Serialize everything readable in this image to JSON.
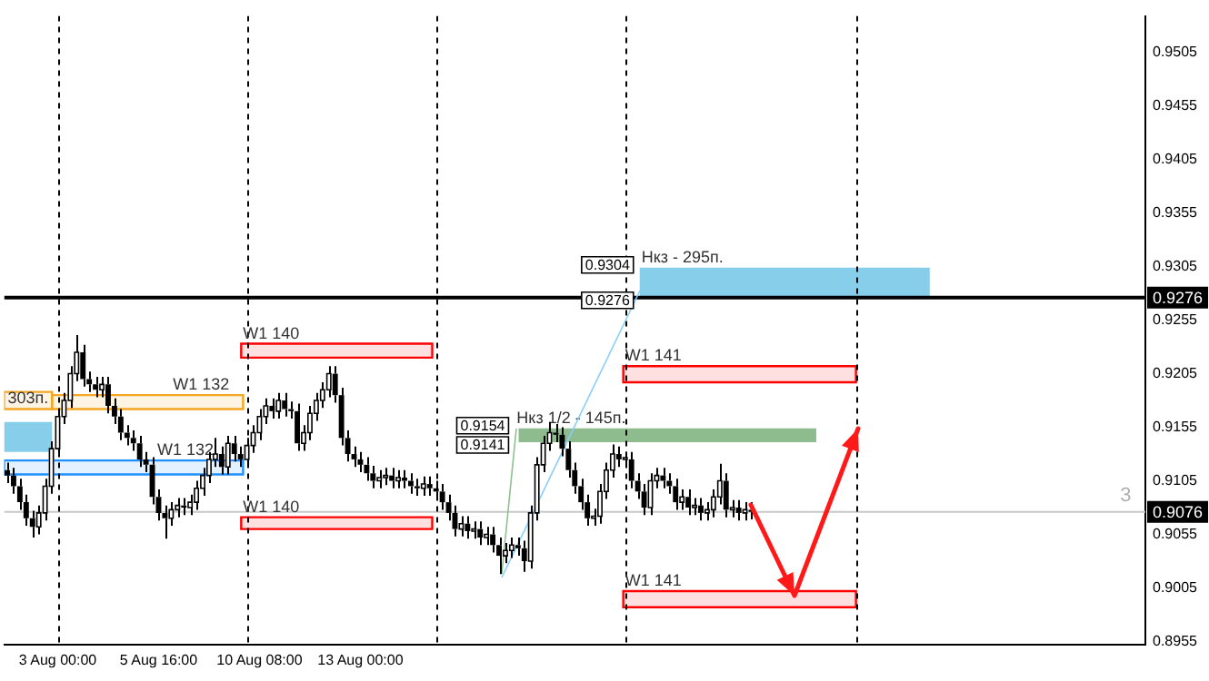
{
  "chart_data": {
    "type": "candlestick",
    "categories": [
      null,
      null,
      null,
      null,
      null,
      null,
      null,
      null,
      "3 Aug 00:00",
      null,
      null,
      null,
      null,
      null,
      null,
      null,
      null,
      null,
      null,
      null,
      null,
      null,
      null,
      null,
      "5 Aug 16:00",
      null,
      null,
      null,
      null,
      null,
      null,
      null,
      null,
      null,
      null,
      null,
      null,
      null,
      null,
      null,
      "10 Aug 08:00",
      null,
      null,
      null,
      null,
      null,
      null,
      null,
      null,
      null,
      null,
      null,
      null,
      null,
      null,
      null,
      "13 Aug 00:00",
      null,
      null,
      null,
      null,
      null,
      null,
      null,
      null,
      null,
      null,
      null,
      null,
      null,
      null,
      null,
      null,
      null,
      null,
      null,
      null,
      null,
      null,
      null,
      null,
      null,
      null,
      null,
      null,
      null,
      null,
      null,
      null,
      null,
      null,
      null,
      null,
      null,
      null,
      null,
      null,
      null,
      null,
      null,
      null,
      null,
      null,
      null,
      null,
      null,
      null,
      null,
      null,
      null,
      null,
      null,
      null,
      null,
      null,
      null,
      null,
      null,
      null,
      null,
      null,
      null,
      null,
      null,
      null,
      null,
      null,
      null,
      null,
      null,
      null,
      null,
      null,
      null,
      null,
      null,
      null,
      null,
      null,
      null,
      null,
      null,
      null,
      null,
      null,
      null,
      null,
      null,
      null,
      null,
      null,
      null,
      null,
      null,
      null,
      null,
      null,
      null,
      null,
      null,
      null,
      null,
      null,
      null,
      null,
      null,
      null,
      null,
      null,
      null,
      null,
      null,
      null,
      null,
      null,
      null,
      null,
      null,
      null,
      null,
      null
    ],
    "ohlc": [
      [
        0.9115,
        0.9122,
        0.9103,
        0.911
      ],
      [
        0.911,
        0.9117,
        0.9093,
        0.91
      ],
      [
        0.91,
        0.9107,
        0.9078,
        0.9085
      ],
      [
        0.9085,
        0.9092,
        0.9063,
        0.907
      ],
      [
        0.907,
        0.9077,
        0.9052,
        0.9062
      ],
      [
        0.9062,
        0.9082,
        0.9055,
        0.9075
      ],
      [
        0.9075,
        0.9107,
        0.9068,
        0.91
      ],
      [
        0.91,
        0.9142,
        0.9093,
        0.9135
      ],
      [
        0.9135,
        0.9172,
        0.9128,
        0.9165
      ],
      [
        0.9165,
        0.9187,
        0.9158,
        0.918
      ],
      [
        0.918,
        0.9212,
        0.9173,
        0.9205
      ],
      [
        0.9205,
        0.9241,
        0.9198,
        0.9225
      ],
      [
        0.9225,
        0.9232,
        0.9193,
        0.92
      ],
      [
        0.92,
        0.9207,
        0.9188,
        0.9195
      ],
      [
        0.9195,
        0.9202,
        0.9183,
        0.919
      ],
      [
        0.919,
        0.9202,
        0.9183,
        0.9195
      ],
      [
        0.9195,
        0.9202,
        0.9168,
        0.9175
      ],
      [
        0.9175,
        0.9182,
        0.9158,
        0.9165
      ],
      [
        0.9165,
        0.9172,
        0.9143,
        0.915
      ],
      [
        0.915,
        0.9157,
        0.9138,
        0.9145
      ],
      [
        0.9145,
        0.9152,
        0.9133,
        0.914
      ],
      [
        0.914,
        0.9147,
        0.9118,
        0.9125
      ],
      [
        0.9125,
        0.9132,
        0.9113,
        0.912
      ],
      [
        0.912,
        0.9127,
        0.9083,
        0.909
      ],
      [
        0.909,
        0.9097,
        0.9068,
        0.9075
      ],
      [
        0.9075,
        0.9082,
        0.9051,
        0.907
      ],
      [
        0.907,
        0.9085,
        0.9063,
        0.9078
      ],
      [
        0.9078,
        0.9089,
        0.9071,
        0.9082
      ],
      [
        0.9082,
        0.9089,
        0.9073,
        0.908
      ],
      [
        0.908,
        0.9092,
        0.9073,
        0.9085
      ],
      [
        0.9085,
        0.9105,
        0.9078,
        0.9098
      ],
      [
        0.9098,
        0.9117,
        0.9091,
        0.911
      ],
      [
        0.911,
        0.9132,
        0.9103,
        0.9125
      ],
      [
        0.9125,
        0.9145,
        0.9118,
        0.913
      ],
      [
        0.913,
        0.9137,
        0.9111,
        0.9118
      ],
      [
        0.9118,
        0.9147,
        0.9111,
        0.914
      ],
      [
        0.914,
        0.9147,
        0.9123,
        0.913
      ],
      [
        0.913,
        0.9137,
        0.9118,
        0.9125
      ],
      [
        0.9125,
        0.9145,
        0.9118,
        0.9138
      ],
      [
        0.9138,
        0.9157,
        0.9131,
        0.915
      ],
      [
        0.915,
        0.9172,
        0.9143,
        0.9165
      ],
      [
        0.9165,
        0.9182,
        0.9158,
        0.9175
      ],
      [
        0.9175,
        0.9182,
        0.9163,
        0.917
      ],
      [
        0.917,
        0.9187,
        0.9163,
        0.918
      ],
      [
        0.918,
        0.9187,
        0.9165,
        0.9172
      ],
      [
        0.9172,
        0.9179,
        0.9163,
        0.917
      ],
      [
        0.917,
        0.9177,
        0.9133,
        0.914
      ],
      [
        0.914,
        0.9157,
        0.9133,
        0.915
      ],
      [
        0.915,
        0.9175,
        0.9143,
        0.9168
      ],
      [
        0.9168,
        0.9187,
        0.9161,
        0.918
      ],
      [
        0.918,
        0.9197,
        0.9173,
        0.919
      ],
      [
        0.919,
        0.9212,
        0.9183,
        0.9205
      ],
      [
        0.9205,
        0.9212,
        0.9178,
        0.9185
      ],
      [
        0.9185,
        0.9192,
        0.9138,
        0.9145
      ],
      [
        0.9145,
        0.9152,
        0.9123,
        0.913
      ],
      [
        0.913,
        0.9137,
        0.9118,
        0.9125
      ],
      [
        0.9125,
        0.9132,
        0.9113,
        0.912
      ],
      [
        0.912,
        0.9127,
        0.9105,
        0.9112
      ],
      [
        0.9112,
        0.9119,
        0.9098,
        0.9105
      ],
      [
        0.9105,
        0.9115,
        0.9098,
        0.9108
      ],
      [
        0.9108,
        0.9117,
        0.9101,
        0.911
      ],
      [
        0.911,
        0.9117,
        0.9098,
        0.9105
      ],
      [
        0.9105,
        0.9115,
        0.9098,
        0.9108
      ],
      [
        0.9108,
        0.9115,
        0.9098,
        0.9105
      ],
      [
        0.9105,
        0.9112,
        0.9093,
        0.91
      ],
      [
        0.91,
        0.9107,
        0.9091,
        0.9098
      ],
      [
        0.9098,
        0.9109,
        0.9091,
        0.9102
      ],
      [
        0.9102,
        0.9109,
        0.9091,
        0.9098
      ],
      [
        0.9098,
        0.9105,
        0.9088,
        0.9095
      ],
      [
        0.9095,
        0.9102,
        0.9078,
        0.9085
      ],
      [
        0.9085,
        0.9092,
        0.9068,
        0.9075
      ],
      [
        0.9075,
        0.9082,
        0.9053,
        0.906
      ],
      [
        0.906,
        0.9072,
        0.9053,
        0.9065
      ],
      [
        0.9065,
        0.9072,
        0.9051,
        0.9058
      ],
      [
        0.9058,
        0.9067,
        0.9051,
        0.906
      ],
      [
        0.906,
        0.9067,
        0.9045,
        0.9052
      ],
      [
        0.9052,
        0.9062,
        0.9045,
        0.9055
      ],
      [
        0.9055,
        0.9062,
        0.9038,
        0.9045
      ],
      [
        0.9045,
        0.9052,
        0.9018,
        0.9035
      ],
      [
        0.9035,
        0.9047,
        0.9028,
        0.904
      ],
      [
        0.904,
        0.9052,
        0.9033,
        0.9045
      ],
      [
        0.9045,
        0.9052,
        0.9035,
        0.9042
      ],
      [
        0.9042,
        0.9049,
        0.902,
        0.903
      ],
      [
        0.903,
        0.9082,
        0.9023,
        0.9075
      ],
      [
        0.9075,
        0.9127,
        0.9068,
        0.912
      ],
      [
        0.912,
        0.9147,
        0.9113,
        0.914
      ],
      [
        0.914,
        0.916,
        0.9133,
        0.915
      ],
      [
        0.915,
        0.9158,
        0.9141,
        0.9148
      ],
      [
        0.9148,
        0.9155,
        0.9128,
        0.9135
      ],
      [
        0.9135,
        0.9142,
        0.9108,
        0.9115
      ],
      [
        0.9115,
        0.9122,
        0.9093,
        0.91
      ],
      [
        0.91,
        0.9107,
        0.9078,
        0.9085
      ],
      [
        0.9085,
        0.9092,
        0.9063,
        0.907
      ],
      [
        0.907,
        0.9079,
        0.9063,
        0.9072
      ],
      [
        0.9072,
        0.9102,
        0.9065,
        0.9095
      ],
      [
        0.9095,
        0.9122,
        0.9088,
        0.9115
      ],
      [
        0.9115,
        0.9139,
        0.9108,
        0.913
      ],
      [
        0.913,
        0.9137,
        0.9118,
        0.9125
      ],
      [
        0.9125,
        0.9132,
        0.9118,
        0.9125
      ],
      [
        0.9125,
        0.9132,
        0.9098,
        0.9105
      ],
      [
        0.9105,
        0.9112,
        0.9088,
        0.9095
      ],
      [
        0.9095,
        0.9102,
        0.9073,
        0.908
      ],
      [
        0.908,
        0.9112,
        0.9073,
        0.9105
      ],
      [
        0.9105,
        0.9117,
        0.9098,
        0.911
      ],
      [
        0.911,
        0.9117,
        0.9098,
        0.9105
      ],
      [
        0.9105,
        0.9112,
        0.9093,
        0.91
      ],
      [
        0.91,
        0.9107,
        0.9078,
        0.9085
      ],
      [
        0.9085,
        0.9097,
        0.9078,
        0.909
      ],
      [
        0.909,
        0.9097,
        0.9073,
        0.908
      ],
      [
        0.908,
        0.9089,
        0.9073,
        0.9082
      ],
      [
        0.9082,
        0.9089,
        0.9068,
        0.9075
      ],
      [
        0.9075,
        0.9085,
        0.9068,
        0.9078
      ],
      [
        0.9078,
        0.9097,
        0.9071,
        0.909
      ],
      [
        0.909,
        0.9121,
        0.9083,
        0.9105
      ],
      [
        0.9105,
        0.9112,
        0.9071,
        0.9078
      ],
      [
        0.9078,
        0.9087,
        0.9071,
        0.908
      ],
      [
        0.908,
        0.9087,
        0.9068,
        0.9075
      ],
      [
        0.9075,
        0.9085,
        0.9068,
        0.9078
      ],
      [
        0.9078,
        0.9085,
        0.9069,
        0.9076
      ],
      null,
      null,
      null,
      null,
      null,
      null,
      null,
      null,
      null,
      null,
      null,
      null,
      null,
      null,
      null,
      null,
      null,
      null,
      null,
      null,
      null,
      null,
      null,
      null,
      null,
      null,
      null,
      null,
      null,
      null,
      null,
      null,
      null,
      null,
      null,
      null,
      null,
      null,
      null,
      null,
      null,
      null,
      null,
      null,
      null,
      null,
      null,
      null,
      null,
      null,
      null,
      null,
      null,
      null,
      null,
      null,
      null,
      null,
      null,
      null,
      null,
      null
    ],
    "ylim": [
      0.8952,
      0.9539
    ],
    "yticks": [
      0.8955,
      0.9005,
      0.9055,
      0.9105,
      0.9155,
      0.9205,
      0.9255,
      0.9305,
      0.9355,
      0.9405,
      0.9455,
      0.9505
    ],
    "ref_lines": [
      {
        "axis": "y",
        "value": 0.9276,
        "label": "0.9276",
        "color": "#000000",
        "line_style": "solid"
      },
      {
        "axis": "y",
        "value": 0.9076,
        "label": "0.9076",
        "color": "#c8c8c8",
        "line_style": "solid"
      }
    ],
    "bands": [
      {
        "axis": "y",
        "from": 0.9172,
        "to": 0.9188,
        "label": "303п.",
        "color": "#f5a623"
      },
      {
        "axis": "y",
        "from": 0.9132,
        "to": 0.916,
        "color": "#87ceeb"
      },
      {
        "axis": "y",
        "from": 0.9172,
        "to": 0.9185,
        "label": "W1 132",
        "color": "#f5a623"
      },
      {
        "axis": "y",
        "from": 0.9111,
        "to": 0.9124,
        "label": "W1 132",
        "color": "#1e90ff"
      },
      {
        "axis": "y",
        "from": 0.922,
        "to": 0.9233,
        "label": "W1 140",
        "color": "#ff0000"
      },
      {
        "axis": "y",
        "from": 0.906,
        "to": 0.9071,
        "label": "W1 140",
        "color": "#ff0000"
      },
      {
        "axis": "y",
        "from": 0.9141,
        "to": 0.9154,
        "label": "Нкз 1/2 - 145п.",
        "color": "#8fbc8f"
      },
      {
        "axis": "y",
        "from": 0.9276,
        "to": 0.9304,
        "label": "Нкз - 295п.",
        "color": "#87ceeb"
      },
      {
        "axis": "y",
        "from": 0.9197,
        "to": 0.9212,
        "label": "W1 141",
        "color": "#ff0000"
      },
      {
        "axis": "y",
        "from": 0.8987,
        "to": 0.9002,
        "label": "W1 141",
        "color": "#ff0000"
      }
    ],
    "annotations": [
      "0.9304",
      {
        "text": "0.9276",
        "y": 0.9276
      },
      {
        "text": "0.9154",
        "y": 0.9154
      },
      {
        "text": "0.9141",
        "y": 0.9141
      },
      "3"
    ],
    "grid": false,
    "legend": false
  }
}
